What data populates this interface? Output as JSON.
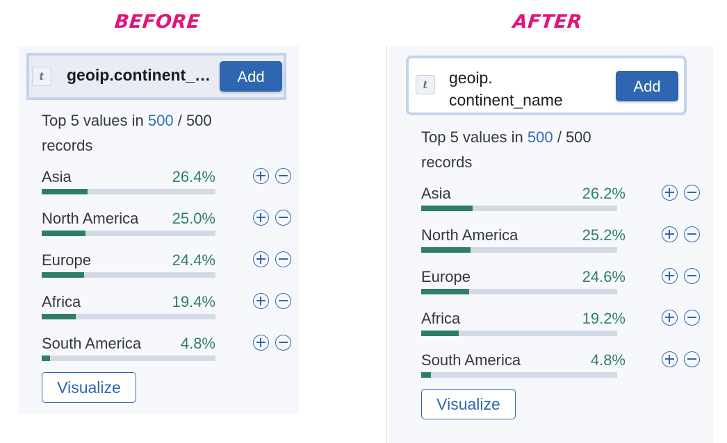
{
  "headings": {
    "before": "BEFORE",
    "after": "AFTER"
  },
  "before": {
    "token_glyph": "t",
    "token_icon": "string-field-type-icon",
    "field_name": "geoip.continent_name",
    "add_label": "Add",
    "summary": {
      "prefix": "Top 5 values in ",
      "sample": "500",
      "separator": " / ",
      "total": "500",
      "suffix": " records"
    },
    "values": [
      {
        "label": "Asia",
        "percent_text": "26.4%",
        "percent": 26.4
      },
      {
        "label": "North America",
        "percent_text": "25.0%",
        "percent": 25.0
      },
      {
        "label": "Europe",
        "percent_text": "24.4%",
        "percent": 24.4
      },
      {
        "label": "Africa",
        "percent_text": "19.4%",
        "percent": 19.4
      },
      {
        "label": "South America",
        "percent_text": "4.8%",
        "percent": 4.8
      }
    ],
    "visualize_label": "Visualize"
  },
  "after": {
    "token_glyph": "t",
    "token_icon": "string-field-type-icon",
    "field_name_line1": "geoip.",
    "field_name_line2": "continent_name",
    "add_label": "Add",
    "summary": {
      "prefix": "Top 5 values in ",
      "sample": "500",
      "separator": " / ",
      "total": "500",
      "suffix": " records"
    },
    "values": [
      {
        "label": "Asia",
        "percent_text": "26.2%",
        "percent": 26.2
      },
      {
        "label": "North America",
        "percent_text": "25.2%",
        "percent": 25.2
      },
      {
        "label": "Europe",
        "percent_text": "24.6%",
        "percent": 24.6
      },
      {
        "label": "Africa",
        "percent_text": "19.2%",
        "percent": 19.2
      },
      {
        "label": "South America",
        "percent_text": "4.8%",
        "percent": 4.8
      }
    ],
    "visualize_label": "Visualize"
  },
  "colors": {
    "heading": "#e0147a",
    "accent": "#2f66b1",
    "percent": "#2e7d6a",
    "bar_track": "#d3dae6"
  }
}
